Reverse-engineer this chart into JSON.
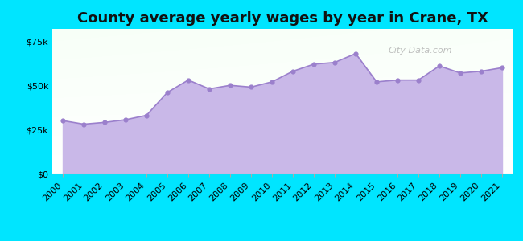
{
  "title": "County average yearly wages by year in Crane, TX",
  "years": [
    2000,
    2001,
    2002,
    2003,
    2004,
    2005,
    2006,
    2007,
    2008,
    2009,
    2010,
    2011,
    2012,
    2013,
    2014,
    2015,
    2016,
    2017,
    2018,
    2019,
    2020,
    2021
  ],
  "wages": [
    30000,
    28000,
    29000,
    30500,
    33000,
    46000,
    53000,
    48000,
    50000,
    49000,
    52000,
    58000,
    62000,
    63000,
    68000,
    52000,
    53000,
    53000,
    61000,
    57000,
    58000,
    60000
  ],
  "fill_color": "#c9b8e8",
  "line_color": "#9b80cc",
  "dot_color": "#9b80cc",
  "outer_bg_color": "#00e5ff",
  "yticks": [
    0,
    25000,
    50000,
    75000
  ],
  "ylim": [
    0,
    82000
  ],
  "title_fontsize": 13,
  "tick_fontsize": 8,
  "watermark": "City-Data.com"
}
